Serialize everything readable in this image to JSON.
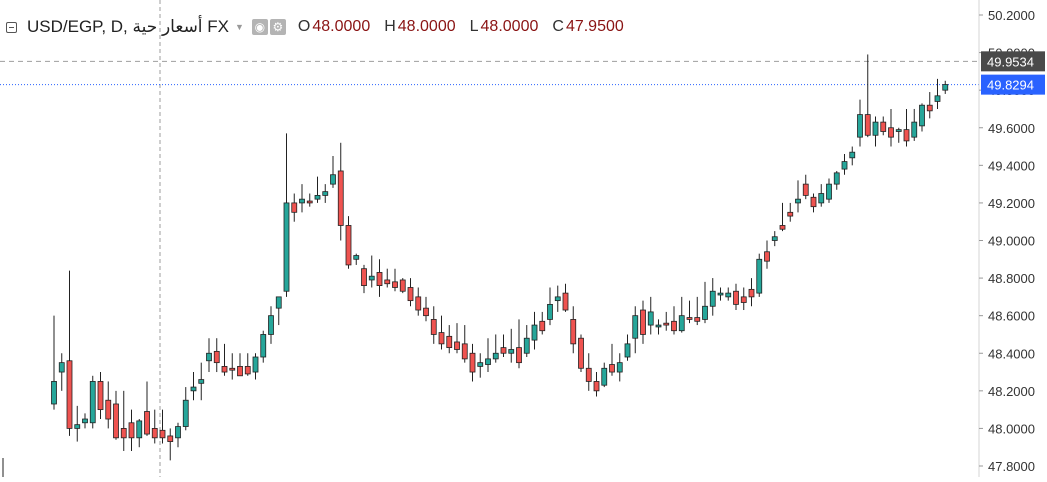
{
  "legend": {
    "symbol": "USD/EGP, D, أسعار حية FX",
    "open_label": "O",
    "open_value": "48.0000",
    "high_label": "H",
    "high_value": "48.0000",
    "low_label": "L",
    "low_value": "48.0000",
    "close_label": "C",
    "close_value": "47.9500",
    "icons": [
      "eye-icon",
      "settings-icon"
    ]
  },
  "colors": {
    "up": "#26a69a",
    "down": "#ef5350",
    "wick": "#222222",
    "last_price_label": "#2962ff",
    "crosshair_label": "#4a4a4a",
    "price_line": "#2962ff",
    "axis_text": "#333333"
  },
  "chart_data": {
    "type": "candlestick",
    "y_axis_side": "right",
    "ylim": [
      47.75,
      50.25
    ],
    "y_ticks": [
      "50.2000",
      "50.0000",
      "49.8000",
      "49.6000",
      "49.4000",
      "49.2000",
      "49.0000",
      "48.8000",
      "48.6000",
      "48.4000",
      "48.2000",
      "48.0000",
      "47.8000"
    ],
    "last_price": "49.8294",
    "crosshair_price": "49.9534",
    "candles": [
      [
        48.13,
        48.6,
        48.1,
        48.25
      ],
      [
        48.3,
        48.4,
        48.2,
        48.35
      ],
      [
        48.36,
        48.84,
        47.96,
        48.0
      ],
      [
        48.0,
        48.12,
        47.93,
        48.02
      ],
      [
        48.03,
        48.08,
        48.0,
        48.05
      ],
      [
        48.03,
        48.28,
        48.0,
        48.25
      ],
      [
        48.25,
        48.3,
        48.05,
        48.1
      ],
      [
        48.15,
        48.25,
        48.0,
        48.05
      ],
      [
        48.13,
        48.2,
        47.94,
        47.95
      ],
      [
        48.0,
        48.2,
        47.88,
        47.95
      ],
      [
        48.03,
        48.1,
        47.88,
        47.95
      ],
      [
        47.95,
        48.05,
        47.9,
        48.04
      ],
      [
        48.09,
        48.25,
        47.96,
        47.97
      ],
      [
        48.0,
        48.1,
        47.92,
        47.95
      ],
      [
        47.99,
        48.1,
        47.92,
        47.95
      ],
      [
        47.96,
        48.0,
        47.83,
        47.93
      ],
      [
        47.95,
        48.03,
        47.9,
        48.01
      ],
      [
        48.01,
        48.22,
        47.99,
        48.15
      ],
      [
        48.2,
        48.3,
        48.15,
        48.22
      ],
      [
        48.24,
        48.35,
        48.15,
        48.26
      ],
      [
        48.36,
        48.48,
        48.3,
        48.4
      ],
      [
        48.41,
        48.48,
        48.3,
        48.35
      ],
      [
        48.33,
        48.45,
        48.28,
        48.3
      ],
      [
        48.32,
        48.4,
        48.26,
        48.31
      ],
      [
        48.33,
        48.4,
        48.3,
        48.28
      ],
      [
        48.33,
        48.4,
        48.28,
        48.29
      ],
      [
        48.3,
        48.4,
        48.26,
        48.38
      ],
      [
        48.38,
        48.52,
        48.35,
        48.5
      ],
      [
        48.5,
        48.65,
        48.45,
        48.6
      ],
      [
        48.64,
        48.7,
        48.55,
        48.7
      ],
      [
        48.73,
        49.57,
        48.7,
        49.2
      ],
      [
        49.2,
        49.25,
        49.1,
        49.15
      ],
      [
        49.2,
        49.3,
        49.15,
        49.22
      ],
      [
        49.21,
        49.25,
        49.18,
        49.2
      ],
      [
        49.22,
        49.34,
        49.2,
        49.24
      ],
      [
        49.24,
        49.3,
        49.2,
        49.26
      ],
      [
        49.3,
        49.45,
        49.28,
        49.35
      ],
      [
        49.37,
        49.52,
        49.0,
        49.08
      ],
      [
        49.08,
        49.13,
        48.85,
        48.87
      ],
      [
        48.9,
        48.93,
        48.87,
        48.92
      ],
      [
        48.85,
        48.87,
        48.72,
        48.76
      ],
      [
        48.79,
        48.92,
        48.75,
        48.81
      ],
      [
        48.83,
        48.9,
        48.7,
        48.76
      ],
      [
        48.79,
        48.85,
        48.75,
        48.77
      ],
      [
        48.78,
        48.85,
        48.73,
        48.75
      ],
      [
        48.79,
        48.8,
        48.72,
        48.73
      ],
      [
        48.75,
        48.8,
        48.65,
        48.68
      ],
      [
        48.7,
        48.75,
        48.6,
        48.63
      ],
      [
        48.64,
        48.7,
        48.57,
        48.6
      ],
      [
        48.58,
        48.65,
        48.45,
        48.5
      ],
      [
        48.51,
        48.6,
        48.42,
        48.45
      ],
      [
        48.49,
        48.55,
        48.4,
        48.43
      ],
      [
        48.46,
        48.56,
        48.4,
        48.42
      ],
      [
        48.45,
        48.55,
        48.35,
        48.37
      ],
      [
        48.4,
        48.45,
        48.25,
        48.3
      ],
      [
        48.33,
        48.4,
        48.27,
        48.35
      ],
      [
        48.34,
        48.48,
        48.3,
        48.37
      ],
      [
        48.37,
        48.5,
        48.35,
        48.4
      ],
      [
        48.43,
        48.5,
        48.38,
        48.4
      ],
      [
        48.4,
        48.53,
        48.35,
        48.42
      ],
      [
        48.43,
        48.58,
        48.32,
        48.35
      ],
      [
        48.4,
        48.55,
        48.38,
        48.48
      ],
      [
        48.47,
        48.62,
        48.42,
        48.55
      ],
      [
        48.57,
        48.62,
        48.5,
        48.52
      ],
      [
        48.58,
        48.75,
        48.55,
        48.66
      ],
      [
        48.68,
        48.76,
        48.62,
        48.7
      ],
      [
        48.72,
        48.77,
        48.62,
        48.63
      ],
      [
        48.58,
        48.65,
        48.4,
        48.45
      ],
      [
        48.48,
        48.5,
        48.3,
        48.32
      ],
      [
        48.32,
        48.4,
        48.2,
        48.25
      ],
      [
        48.25,
        48.3,
        48.17,
        48.2
      ],
      [
        48.23,
        48.35,
        48.22,
        48.32
      ],
      [
        48.34,
        48.45,
        48.28,
        48.3
      ],
      [
        48.3,
        48.4,
        48.25,
        48.35
      ],
      [
        48.38,
        48.5,
        48.36,
        48.45
      ],
      [
        48.48,
        48.65,
        48.4,
        48.6
      ],
      [
        48.63,
        48.68,
        48.45,
        48.5
      ],
      [
        48.55,
        48.7,
        48.5,
        48.62
      ],
      [
        48.54,
        48.58,
        48.5,
        48.55
      ],
      [
        48.56,
        48.62,
        48.52,
        48.55
      ],
      [
        48.57,
        48.65,
        48.5,
        48.52
      ],
      [
        48.52,
        48.7,
        48.51,
        48.6
      ],
      [
        48.59,
        48.68,
        48.56,
        48.58
      ],
      [
        48.59,
        48.7,
        48.55,
        48.57
      ],
      [
        48.58,
        48.78,
        48.56,
        48.65
      ],
      [
        48.65,
        48.8,
        48.6,
        48.73
      ],
      [
        48.71,
        48.75,
        48.68,
        48.72
      ],
      [
        48.7,
        48.75,
        48.68,
        48.72
      ],
      [
        48.73,
        48.77,
        48.63,
        48.66
      ],
      [
        48.7,
        48.75,
        48.63,
        48.67
      ],
      [
        48.74,
        48.8,
        48.65,
        48.7
      ],
      [
        48.72,
        48.93,
        48.7,
        48.9
      ],
      [
        48.94,
        49.0,
        48.85,
        48.89
      ],
      [
        49.0,
        49.05,
        48.97,
        49.02
      ],
      [
        49.08,
        49.2,
        49.05,
        49.06
      ],
      [
        49.15,
        49.2,
        49.1,
        49.13
      ],
      [
        49.2,
        49.32,
        49.15,
        49.22
      ],
      [
        49.3,
        49.35,
        49.22,
        49.24
      ],
      [
        49.23,
        49.25,
        49.15,
        49.18
      ],
      [
        49.2,
        49.3,
        49.18,
        49.25
      ],
      [
        49.22,
        49.33,
        49.2,
        49.3
      ],
      [
        49.3,
        49.37,
        49.27,
        49.36
      ],
      [
        49.38,
        49.46,
        49.35,
        49.42
      ],
      [
        49.44,
        49.5,
        49.4,
        49.47
      ],
      [
        49.55,
        49.75,
        49.5,
        49.67
      ],
      [
        49.67,
        49.99,
        49.55,
        49.56
      ],
      [
        49.56,
        49.66,
        49.5,
        49.63
      ],
      [
        49.63,
        49.66,
        49.56,
        49.58
      ],
      [
        49.6,
        49.7,
        49.5,
        49.55
      ],
      [
        49.58,
        49.6,
        49.52,
        49.59
      ],
      [
        49.59,
        49.7,
        49.5,
        49.53
      ],
      [
        49.55,
        49.7,
        49.53,
        49.63
      ],
      [
        49.61,
        49.73,
        49.58,
        49.72
      ],
      [
        49.72,
        49.79,
        49.65,
        49.69
      ],
      [
        49.74,
        49.86,
        49.7,
        49.77
      ],
      [
        49.8,
        49.85,
        49.78,
        49.83
      ]
    ]
  }
}
